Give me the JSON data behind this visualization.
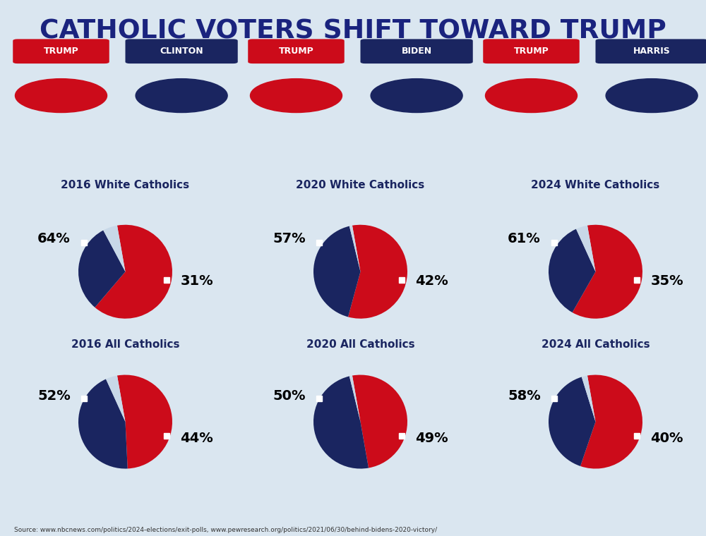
{
  "title": "CATHOLIC VOTERS SHIFT TOWARD TRUMP",
  "title_color": "#1a237e",
  "background_color": "#dae6f0",
  "panel_background": "#c8d8e8",
  "trump_color": "#cc0b1a",
  "opponent_color": "#1a2560",
  "source_text": "Source: www.nbcnews.com/politics/2024-elections/exit-polls, www.pewresearch.org/politics/2021/06/30/behind-bidens-2020-victory/",
  "columns": [
    {
      "year": "2016",
      "opponent": "CLINTON",
      "white_catholics": {
        "trump": 64,
        "opponent": 31
      },
      "all_catholics": {
        "trump": 52,
        "opponent": 44
      }
    },
    {
      "year": "2020",
      "opponent": "BIDEN",
      "white_catholics": {
        "trump": 57,
        "opponent": 42
      },
      "all_catholics": {
        "trump": 50,
        "opponent": 49
      }
    },
    {
      "year": "2024",
      "opponent": "HARRIS",
      "white_catholics": {
        "trump": 61,
        "opponent": 35
      },
      "all_catholics": {
        "trump": 58,
        "opponent": 40
      }
    }
  ]
}
